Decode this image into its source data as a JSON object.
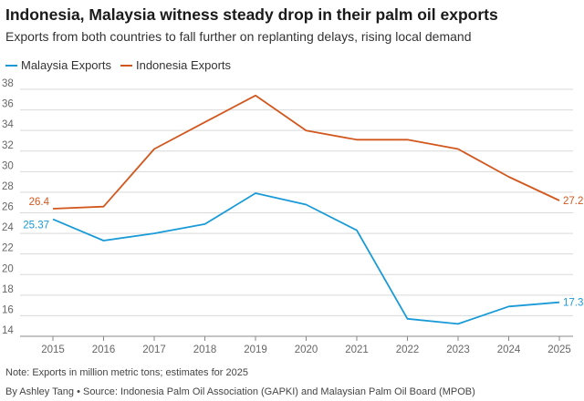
{
  "title": "Indonesia, Malaysia witness steady drop in their palm oil exports",
  "subtitle": "Exports from both countries to fall further on replanting delays, rising local demand",
  "note": "Note: Exports in million metric tons; estimates for 2025",
  "byline": "By Ashley Tang • Source: Indonesia Palm Oil Association (GAPKI) and Malaysian Palm Oil Board (MPOB)",
  "colors": {
    "malaysia": "#1a9bd7",
    "indonesia": "#d2571d",
    "grid": "#d9d9d9",
    "axis": "#888888"
  },
  "chart_data": {
    "type": "line",
    "x": [
      2015,
      2016,
      2017,
      2018,
      2019,
      2020,
      2021,
      2022,
      2023,
      2024,
      2025
    ],
    "series": [
      {
        "name": "Malaysia Exports",
        "color": "#1a9bd7",
        "values": [
          25.37,
          23.3,
          24.0,
          24.9,
          27.9,
          26.8,
          24.3,
          15.7,
          15.2,
          16.9,
          17.3
        ]
      },
      {
        "name": "Indonesia Exports",
        "color": "#d2571d",
        "values": [
          26.4,
          26.6,
          32.2,
          34.8,
          37.4,
          34.0,
          33.1,
          33.1,
          32.2,
          29.5,
          27.2
        ]
      }
    ],
    "yticks": [
      14,
      16,
      18,
      20,
      22,
      24,
      26,
      28,
      30,
      32,
      34,
      36,
      38
    ],
    "ylim": [
      14,
      38
    ],
    "grid": true,
    "legend": "top-left",
    "data_labels": [
      {
        "series": 0,
        "index": 0,
        "text": "25.37"
      },
      {
        "series": 0,
        "index": 10,
        "text": "17.3"
      },
      {
        "series": 1,
        "index": 0,
        "text": "26.4"
      },
      {
        "series": 1,
        "index": 10,
        "text": "27.2"
      }
    ]
  }
}
